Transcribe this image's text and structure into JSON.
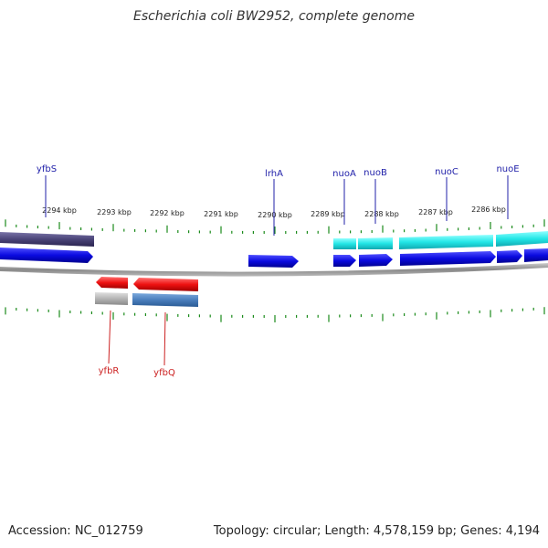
{
  "title": "Escherichia coli BW2952, complete genome",
  "accession": "Accession: NC_012759",
  "summary": "Topology: circular; Length: 4,578,159 bp; Genes: 4,194",
  "colors": {
    "dark_purple": "#4a4478",
    "blue": "#0a0ae0",
    "cyan": "#22e6e6",
    "red": "#ee1111",
    "gray": "#b4b4b4",
    "steel": "#4a7ebc",
    "tick": "#1a8a1a",
    "label_blue": "#2222aa",
    "label_red": "#cc2222",
    "backbone": "#999999"
  },
  "scale_labels": [
    "2294 kbp",
    "2293 kbp",
    "2292 kbp",
    "2291 kbp",
    "2290 kbp",
    "2289 kbp",
    "2288 kbp",
    "2287 kbp",
    "2286 kbp"
  ],
  "genes_top": [
    "yfbS",
    "lrhA",
    "nuoA",
    "nuoB",
    "nuoC",
    "nuoE"
  ],
  "genes_bottom": [
    "yfbR",
    "yfbQ"
  ]
}
